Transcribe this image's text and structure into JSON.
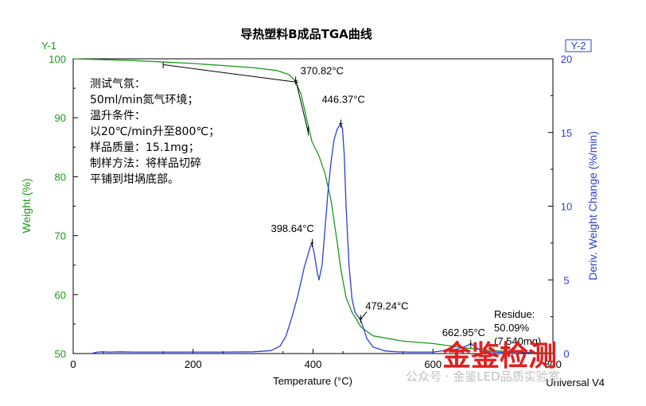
{
  "chart_data": {
    "type": "line",
    "title": "导热塑料B成品TGA曲线",
    "xlabel": "Temperature (°C)",
    "ylabel_left": "Weight (%)",
    "ylabel_right": "Deriv. Weight Change (%/min)",
    "axis_tag_left": "Y-1",
    "axis_tag_right": "Y-2",
    "xlim": [
      0,
      800
    ],
    "ylim_left": [
      50,
      100
    ],
    "ylim_right": [
      0,
      20
    ],
    "x_ticks": [
      0,
      200,
      400,
      600,
      800
    ],
    "x_tick_labels": [
      "0",
      "200",
      "400",
      "600",
      "800"
    ],
    "y_left_ticks": [
      50,
      60,
      70,
      80,
      90,
      100
    ],
    "y_left_tick_labels": [
      "50",
      "60",
      "70",
      "80",
      "90",
      "100"
    ],
    "y_right_ticks": [
      0,
      5,
      10,
      15,
      20
    ],
    "y_right_tick_labels": [
      "0",
      "5",
      "10",
      "15",
      "20"
    ],
    "grid": false,
    "series": [
      {
        "color": "#1a9a1a",
        "axis": "left",
        "x": [
          0,
          100,
          200,
          300,
          340,
          360,
          370,
          380,
          390,
          398,
          410,
          420,
          430,
          440,
          446,
          455,
          465,
          480,
          500,
          550,
          600,
          650,
          700,
          750,
          800
        ],
        "y": [
          100.0,
          99.7,
          99.2,
          98.5,
          98.0,
          97.3,
          96.3,
          94.0,
          89.5,
          86.0,
          83.5,
          80.5,
          76.0,
          69.0,
          64.5,
          59.5,
          57.0,
          54.5,
          53.0,
          52.1,
          51.7,
          51.0,
          50.5,
          50.2,
          50.1
        ]
      },
      {
        "color": "#2d3fd6",
        "axis": "right",
        "x": [
          30,
          35,
          40,
          50,
          60,
          80,
          100,
          150,
          200,
          250,
          300,
          330,
          345,
          355,
          365,
          375,
          385,
          395,
          398,
          402,
          407,
          410,
          415,
          420,
          425,
          430,
          435,
          440,
          443,
          446,
          449,
          452,
          455,
          460,
          465,
          470,
          475,
          479,
          485,
          490,
          500,
          520,
          540,
          560,
          600,
          640,
          655,
          663,
          670,
          680,
          700,
          720,
          740,
          760,
          770
        ],
        "y": [
          0.0,
          0.05,
          0.1,
          0.12,
          0.1,
          0.12,
          0.1,
          0.1,
          0.1,
          0.1,
          0.12,
          0.2,
          0.5,
          1.2,
          2.5,
          4.0,
          5.8,
          7.2,
          7.5,
          6.8,
          5.5,
          5.0,
          6.0,
          8.5,
          11.0,
          13.0,
          14.5,
          15.2,
          15.4,
          15.6,
          15.3,
          13.5,
          10.0,
          6.0,
          3.7,
          2.8,
          2.5,
          2.35,
          1.6,
          1.0,
          0.45,
          0.18,
          0.12,
          0.1,
          0.1,
          0.3,
          0.5,
          0.65,
          0.5,
          0.18,
          0.1,
          0.08,
          0.08,
          0.05,
          0.03
        ]
      }
    ],
    "annotations": [
      {
        "text": "370.82°C",
        "x": 371,
        "axis": "left",
        "y": 96.3
      },
      {
        "text": "446.37°C",
        "x": 446.37,
        "axis": "right",
        "y": 15.6
      },
      {
        "text": "398.64°C",
        "x": 398.64,
        "axis": "right",
        "y": 7.5
      },
      {
        "text": "479.24°C",
        "x": 479.24,
        "axis": "right",
        "y": 2.35
      },
      {
        "text": "662.95°C",
        "x": 662.95,
        "axis": "right",
        "y": 0.65
      }
    ],
    "residue_lines": [
      "Residue:",
      "50.09%",
      "(7.540mg)"
    ],
    "conditions_lines": [
      "测试气氛：",
      "50ml/min氮气环境；",
      "温升条件：",
      "以20℃/min升至800℃；",
      "样品质量：15.1mg；",
      "制样方法：将样品切碎",
      "平铺到坩埚底部。"
    ],
    "software_label": "Universal V4"
  },
  "watermark": {
    "stamp_text": "金鉴检测",
    "wechat_text": "公众号 · 金鉴LED品质实验室",
    "stamp_color": "#e02020"
  }
}
